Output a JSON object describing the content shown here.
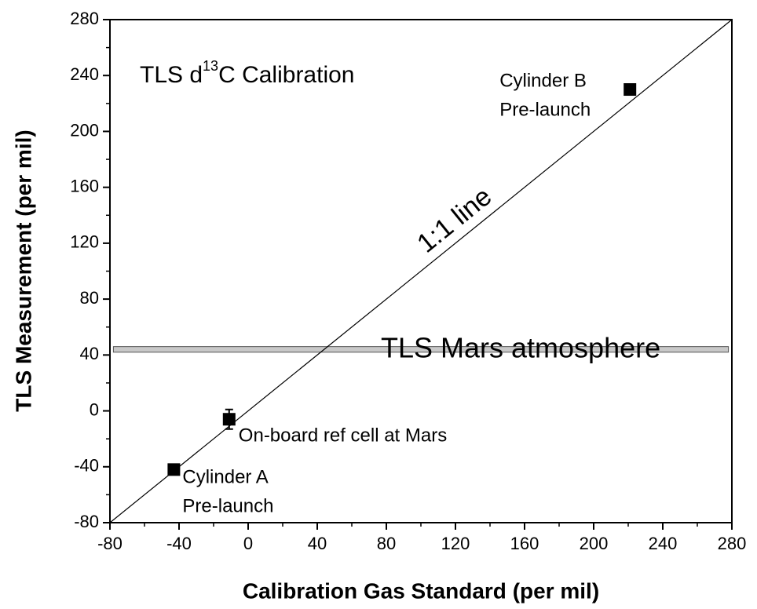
{
  "chart_data": {
    "type": "scatter",
    "xlabel": "Calibration Gas Standard (per mil)",
    "ylabel": "TLS Measurement (per mil)",
    "annotation": [
      "TLS d",
      "13",
      "C Calibration"
    ],
    "xlim": [
      -80,
      280
    ],
    "ylim": [
      -80,
      280
    ],
    "xticks": [
      -80,
      -40,
      0,
      40,
      80,
      120,
      160,
      200,
      240,
      280
    ],
    "yticks": [
      -80,
      -40,
      0,
      40,
      80,
      120,
      160,
      200,
      240,
      280
    ],
    "color": "#000000",
    "series": [
      {
        "x": [
          -43,
          -11,
          221
        ],
        "values": [
          -42,
          -6,
          230
        ],
        "errors": [
          null,
          7,
          null
        ],
        "point_labels": [
          [
            "Cylinder A",
            "Pre-launch"
          ],
          [
            "On-board ref cell at Mars"
          ],
          [
            "Cylinder B",
            "Pre-launch"
          ]
        ]
      }
    ],
    "reference_line": {
      "label": "1:1 line",
      "x": [
        -80,
        280
      ],
      "y": [
        -80,
        280
      ]
    },
    "band": {
      "label": "TLS Mars atmosphere",
      "x": [
        -78,
        278
      ],
      "y": [
        42,
        46
      ],
      "color": "#c8c8c8"
    }
  }
}
